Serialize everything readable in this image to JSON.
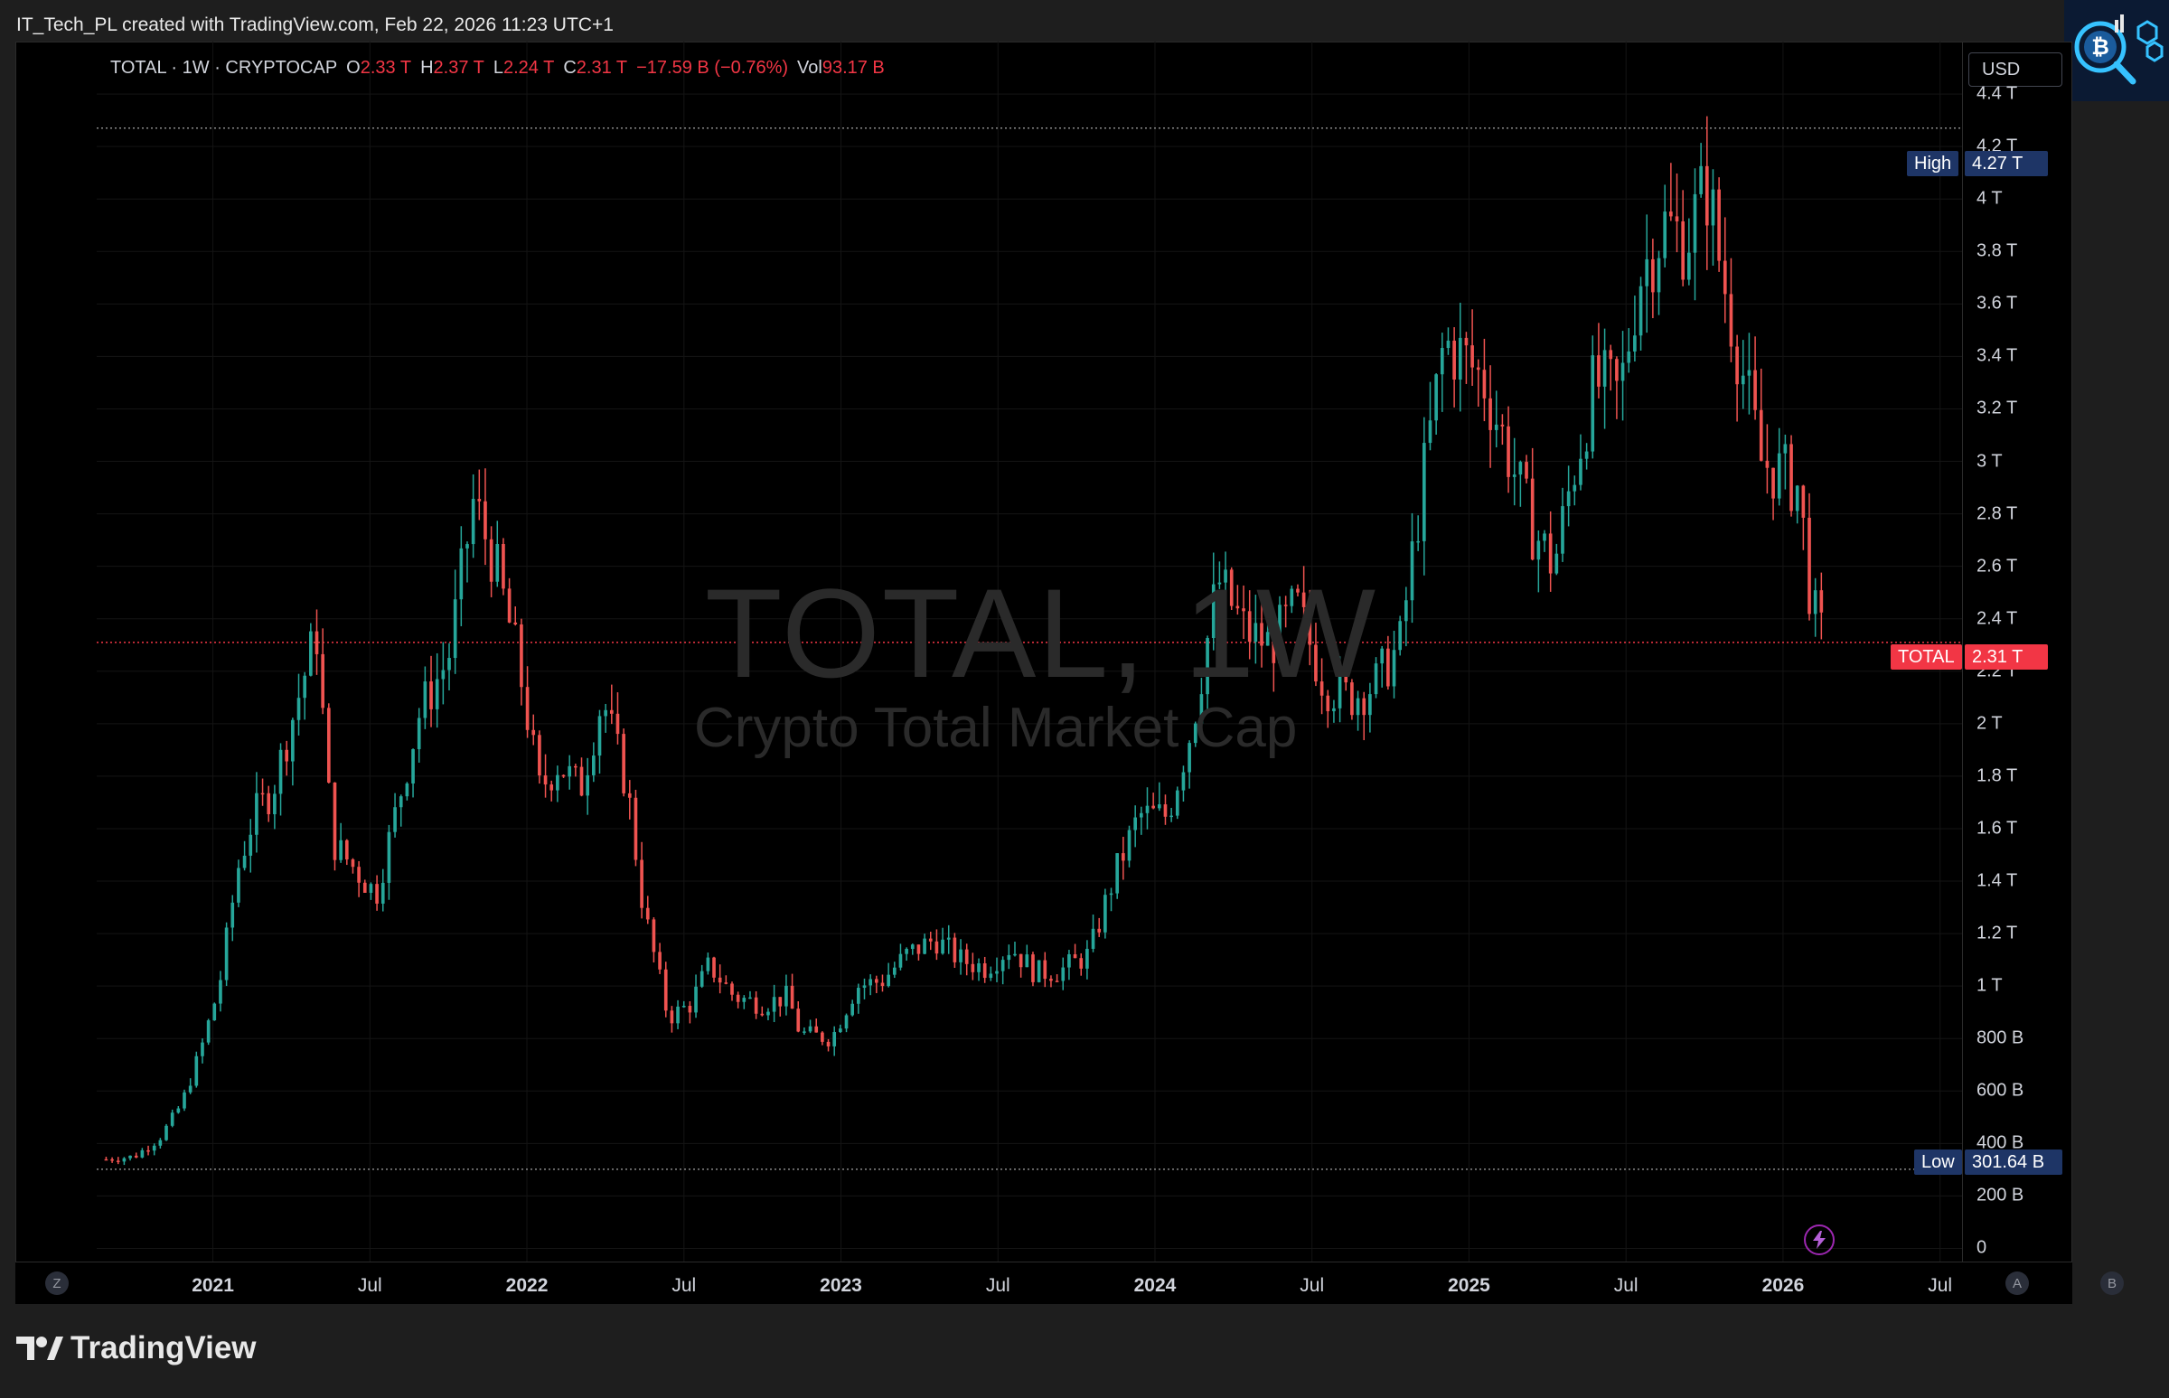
{
  "header": {
    "attribution": "IT_Tech_PL created with TradingView.com, Feb 22, 2026 11:23 UTC+1"
  },
  "legend": {
    "symbol": "TOTAL · 1W · CRYPTOCAP",
    "o_label": "O",
    "o_value": "2.33 T",
    "h_label": "H",
    "h_value": "2.37 T",
    "l_label": "L",
    "l_value": "2.24 T",
    "c_label": "C",
    "c_value": "2.31 T",
    "change": "−17.59 B (−0.76%)",
    "vol_label": "Vol",
    "vol_value": "93.17 B"
  },
  "currency": "USD",
  "watermark": {
    "title": "TOTAL, 1W",
    "subtitle": "Crypto Total Market Cap"
  },
  "markers": {
    "high_label": "High",
    "high_value": "4.27 T",
    "low_label": "Low",
    "low_value": "301.64 B",
    "current_label": "TOTAL",
    "current_value": "2.31 T"
  },
  "scale_buttons": {
    "z": "Z",
    "a": "A",
    "b": "B"
  },
  "footer": {
    "brand": "TradingView"
  },
  "colors": {
    "up": "#26a69a",
    "down": "#ef5350",
    "background": "#000000",
    "tag_blue": "#1e3566",
    "tag_red": "#f23645"
  },
  "chart_data": {
    "type": "candlestick",
    "title": "TOTAL, 1W",
    "subtitle": "Crypto Total Market Cap",
    "unit": "USD",
    "y_ticks": [
      "0",
      "200 B",
      "400 B",
      "600 B",
      "800 B",
      "1 T",
      "1.2 T",
      "1.4 T",
      "1.6 T",
      "1.8 T",
      "2 T",
      "2.2 T",
      "2.4 T",
      "2.6 T",
      "2.8 T",
      "3 T",
      "3.2 T",
      "3.4 T",
      "3.6 T",
      "3.8 T",
      "4 T",
      "4.2 T",
      "4.4 T"
    ],
    "y_tick_values": [
      0,
      0.2,
      0.4,
      0.6,
      0.8,
      1.0,
      1.2,
      1.4,
      1.6,
      1.8,
      2.0,
      2.2,
      2.4,
      2.6,
      2.8,
      3.0,
      3.2,
      3.4,
      3.6,
      3.8,
      4.0,
      4.2,
      4.4
    ],
    "ylim": [
      -0.05,
      4.6
    ],
    "x_ticks": [
      {
        "label": "2021",
        "t": 2021.0,
        "major": true
      },
      {
        "label": "Jul",
        "t": 2021.5,
        "major": false
      },
      {
        "label": "2022",
        "t": 2022.0,
        "major": true
      },
      {
        "label": "Jul",
        "t": 2022.5,
        "major": false
      },
      {
        "label": "2023",
        "t": 2023.0,
        "major": true
      },
      {
        "label": "Jul",
        "t": 2023.5,
        "major": false
      },
      {
        "label": "2024",
        "t": 2024.0,
        "major": true
      },
      {
        "label": "Jul",
        "t": 2024.5,
        "major": false
      },
      {
        "label": "2025",
        "t": 2025.0,
        "major": true
      },
      {
        "label": "Jul",
        "t": 2025.5,
        "major": false
      },
      {
        "label": "2026",
        "t": 2026.0,
        "major": true
      },
      {
        "label": "Jul",
        "t": 2026.5,
        "major": false
      }
    ],
    "xlim": [
      2020.63,
      2026.57
    ],
    "high": 4.27,
    "low": 0.30164,
    "last_close": 2.31,
    "grid": true,
    "close_path": [
      {
        "t": 2020.66,
        "v": 0.34
      },
      {
        "t": 2020.75,
        "v": 0.35
      },
      {
        "t": 2020.83,
        "v": 0.42
      },
      {
        "t": 2020.9,
        "v": 0.55
      },
      {
        "t": 2020.96,
        "v": 0.75
      },
      {
        "t": 2021.02,
        "v": 1.0
      },
      {
        "t": 2021.08,
        "v": 1.45
      },
      {
        "t": 2021.13,
        "v": 1.65
      },
      {
        "t": 2021.19,
        "v": 1.75
      },
      {
        "t": 2021.26,
        "v": 2.05
      },
      {
        "t": 2021.33,
        "v": 2.35
      },
      {
        "t": 2021.38,
        "v": 1.55
      },
      {
        "t": 2021.45,
        "v": 1.45
      },
      {
        "t": 2021.52,
        "v": 1.35
      },
      {
        "t": 2021.58,
        "v": 1.65
      },
      {
        "t": 2021.66,
        "v": 2.05
      },
      {
        "t": 2021.75,
        "v": 2.25
      },
      {
        "t": 2021.83,
        "v": 2.85
      },
      {
        "t": 2021.9,
        "v": 2.6
      },
      {
        "t": 2021.97,
        "v": 2.25
      },
      {
        "t": 2022.04,
        "v": 1.75
      },
      {
        "t": 2022.1,
        "v": 1.85
      },
      {
        "t": 2022.17,
        "v": 1.75
      },
      {
        "t": 2022.24,
        "v": 2.1
      },
      {
        "t": 2022.32,
        "v": 1.75
      },
      {
        "t": 2022.37,
        "v": 1.3
      },
      {
        "t": 2022.45,
        "v": 0.88
      },
      {
        "t": 2022.52,
        "v": 0.93
      },
      {
        "t": 2022.58,
        "v": 1.08
      },
      {
        "t": 2022.66,
        "v": 0.96
      },
      {
        "t": 2022.75,
        "v": 0.93
      },
      {
        "t": 2022.83,
        "v": 0.96
      },
      {
        "t": 2022.87,
        "v": 0.82
      },
      {
        "t": 2022.97,
        "v": 0.8
      },
      {
        "t": 2023.05,
        "v": 1.0
      },
      {
        "t": 2023.13,
        "v": 1.02
      },
      {
        "t": 2023.21,
        "v": 1.12
      },
      {
        "t": 2023.3,
        "v": 1.18
      },
      {
        "t": 2023.38,
        "v": 1.1
      },
      {
        "t": 2023.46,
        "v": 1.07
      },
      {
        "t": 2023.54,
        "v": 1.15
      },
      {
        "t": 2023.62,
        "v": 1.05
      },
      {
        "t": 2023.7,
        "v": 1.06
      },
      {
        "t": 2023.79,
        "v": 1.12
      },
      {
        "t": 2023.87,
        "v": 1.42
      },
      {
        "t": 2023.95,
        "v": 1.65
      },
      {
        "t": 2024.04,
        "v": 1.65
      },
      {
        "t": 2024.12,
        "v": 2.0
      },
      {
        "t": 2024.2,
        "v": 2.55
      },
      {
        "t": 2024.29,
        "v": 2.35
      },
      {
        "t": 2024.37,
        "v": 2.3
      },
      {
        "t": 2024.45,
        "v": 2.45
      },
      {
        "t": 2024.54,
        "v": 2.15
      },
      {
        "t": 2024.62,
        "v": 2.1
      },
      {
        "t": 2024.7,
        "v": 2.15
      },
      {
        "t": 2024.78,
        "v": 2.3
      },
      {
        "t": 2024.85,
        "v": 2.9
      },
      {
        "t": 2024.92,
        "v": 3.45
      },
      {
        "t": 2024.98,
        "v": 3.4
      },
      {
        "t": 2025.05,
        "v": 3.3
      },
      {
        "t": 2025.12,
        "v": 3.05
      },
      {
        "t": 2025.2,
        "v": 2.75
      },
      {
        "t": 2025.27,
        "v": 2.6
      },
      {
        "t": 2025.33,
        "v": 2.95
      },
      {
        "t": 2025.4,
        "v": 3.3
      },
      {
        "t": 2025.48,
        "v": 3.25
      },
      {
        "t": 2025.54,
        "v": 3.7
      },
      {
        "t": 2025.62,
        "v": 3.9
      },
      {
        "t": 2025.69,
        "v": 3.85
      },
      {
        "t": 2025.76,
        "v": 4.05
      },
      {
        "t": 2025.8,
        "v": 3.75
      },
      {
        "t": 2025.87,
        "v": 3.35
      },
      {
        "t": 2025.93,
        "v": 3.0
      },
      {
        "t": 2026.0,
        "v": 2.95
      },
      {
        "t": 2026.05,
        "v": 2.9
      },
      {
        "t": 2026.09,
        "v": 2.45
      },
      {
        "t": 2026.13,
        "v": 2.31
      }
    ]
  }
}
